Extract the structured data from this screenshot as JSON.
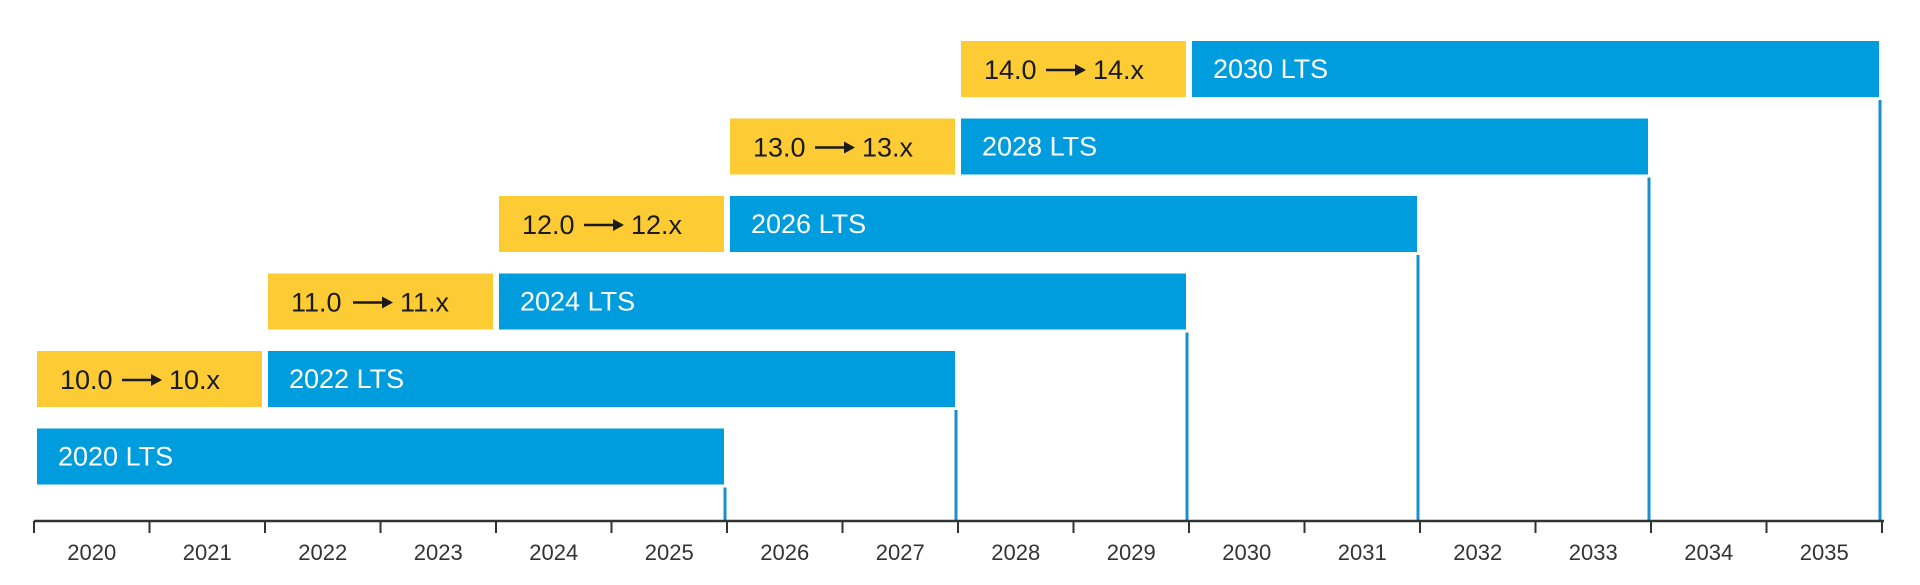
{
  "chart_data": {
    "type": "gantt",
    "title": "",
    "xlabel": "",
    "ylabel": "",
    "x_range": [
      2020,
      2036
    ],
    "tick_labels": [
      "2020",
      "2021",
      "2022",
      "2023",
      "2024",
      "2025",
      "2026",
      "2027",
      "2028",
      "2029",
      "2030",
      "2031",
      "2032",
      "2033",
      "2034",
      "2035"
    ],
    "grid": false,
    "legend": "none",
    "colors": {
      "preview": "#FDCB34",
      "lts": "#009DDE",
      "axis": "#333333",
      "end_marker": "#1A8FD0",
      "preview_text": "#1A1A1A",
      "lts_text": "#FFFFFF"
    },
    "rows": [
      {
        "preview": {
          "from_label": "14.0",
          "to_label": "14.x",
          "start": 2028.0,
          "end": 2030.0
        },
        "lts": {
          "label": "2030 LTS",
          "start": 2030.0,
          "end": 2036.0
        }
      },
      {
        "preview": {
          "from_label": "13.0",
          "to_label": "13.x",
          "start": 2026.0,
          "end": 2028.0
        },
        "lts": {
          "label": "2028 LTS",
          "start": 2028.0,
          "end": 2034.0
        }
      },
      {
        "preview": {
          "from_label": "12.0",
          "to_label": "12.x",
          "start": 2024.0,
          "end": 2026.0
        },
        "lts": {
          "label": "2026 LTS",
          "start": 2026.0,
          "end": 2032.0
        }
      },
      {
        "preview": {
          "from_label": "11.0",
          "to_label": "11.x",
          "start": 2022.0,
          "end": 2024.0
        },
        "lts": {
          "label": "2024 LTS",
          "start": 2024.0,
          "end": 2030.0
        }
      },
      {
        "preview": {
          "from_label": "10.0",
          "to_label": "10.x",
          "start": 2020.0,
          "end": 2022.0
        },
        "lts": {
          "label": "2022 LTS",
          "start": 2022.0,
          "end": 2028.0
        }
      },
      {
        "preview": null,
        "lts": {
          "label": "2020 LTS",
          "start": 2020.0,
          "end": 2026.0
        }
      }
    ]
  }
}
